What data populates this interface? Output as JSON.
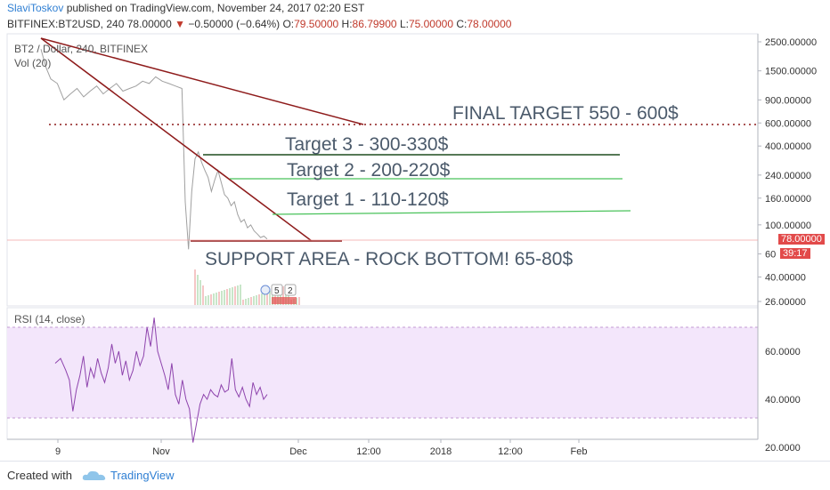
{
  "header": {
    "author": "SlaviToskov",
    "published": "published on TradingView.com, November 24, 2017 02:20 EST",
    "symbol": "BITFINEX:BT2USD, 240",
    "last": "78.00000",
    "change": "−0.50000 (−0.64%)",
    "o_label": "O:",
    "o_value": "79.50000",
    "h_label": "H:",
    "h_value": "86.79900",
    "l_label": "L:",
    "l_value": "75.00000",
    "c_label": "C:",
    "c_value": "78.00000"
  },
  "overlays": {
    "pair": "BT2 / Dollar, 240, BITFINEX",
    "vol": "Vol (20)",
    "rsi": "RSI (14, close)"
  },
  "annotations": {
    "final_target": "FINAL TARGET  550 - 600$",
    "target3": "Target 3 - 300-330$",
    "target2": "Target 2 - 200-220$",
    "target1": "Target 1 - 110-120$",
    "support": "SUPPORT AREA - ROCK BOTTOM! 65-80$"
  },
  "price_tags": {
    "last_price": "78.00000",
    "countdown": "39:17",
    "marker_a": "5",
    "marker_b": "2"
  },
  "footer": {
    "created_with": "Created with",
    "brand": "TradingView"
  },
  "colors": {
    "trendline": "#8e1b1b",
    "target_green": "#49c25a",
    "target_dark": "#1e4d1e",
    "rsi_line": "#8e44ad",
    "rsi_band": "#f3e6fb",
    "price_tag": "#e24a4a"
  },
  "chart_data": [
    {
      "type": "line",
      "title": "BT2 / Dollar, 240, BITFINEX",
      "y_scale": "log",
      "y_ticks": [
        "2500.00000",
        "1500.00000",
        "900.00000",
        "600.00000",
        "400.00000",
        "240.00000",
        "160.00000",
        "100.00000",
        "60",
        "40.00000",
        "26.00000"
      ],
      "y_tick_values": [
        2500,
        1500,
        900,
        600,
        400,
        240,
        160,
        100,
        60,
        40,
        26
      ],
      "x_ticks": [
        "9",
        "Nov",
        "Dec",
        "12:00",
        "2018",
        "12:00",
        "Feb"
      ],
      "series": [
        {
          "values": [
            [
              0,
              2200
            ],
            [
              3,
              1600
            ],
            [
              6,
              1300
            ],
            [
              10,
              1200
            ],
            [
              14,
              900
            ],
            [
              18,
              1000
            ],
            [
              22,
              1100
            ],
            [
              26,
              950
            ],
            [
              30,
              1050
            ],
            [
              34,
              1150
            ],
            [
              38,
              1000
            ],
            [
              42,
              1100
            ],
            [
              46,
              1200
            ],
            [
              50,
              1050
            ],
            [
              54,
              1100
            ],
            [
              58,
              1150
            ],
            [
              62,
              1250
            ],
            [
              66,
              1200
            ],
            [
              70,
              1350
            ],
            [
              74,
              1250
            ],
            [
              78,
              1200
            ],
            [
              82,
              1150
            ],
            [
              86,
              1100
            ],
            [
              88,
              150
            ],
            [
              90,
              65
            ],
            [
              92,
              180
            ],
            [
              94,
              320
            ],
            [
              96,
              360
            ],
            [
              98,
              300
            ],
            [
              100,
              260
            ],
            [
              102,
              230
            ],
            [
              104,
              180
            ],
            [
              106,
              220
            ],
            [
              108,
              260
            ],
            [
              110,
              210
            ],
            [
              112,
              170
            ],
            [
              114,
              160
            ],
            [
              116,
              140
            ],
            [
              118,
              150
            ],
            [
              120,
              120
            ],
            [
              122,
              105
            ],
            [
              124,
              110
            ],
            [
              126,
              95
            ],
            [
              128,
              100
            ],
            [
              130,
              90
            ],
            [
              132,
              85
            ],
            [
              134,
              80
            ],
            [
              136,
              82
            ],
            [
              138,
              78
            ]
          ]
        }
      ],
      "horizontal_levels": [
        {
          "label": "FINAL TARGET  550 - 600$",
          "value": 600
        },
        {
          "label": "Target 3 - 300-330$",
          "value": 360
        },
        {
          "label": "Target 2 - 200-220$",
          "value": 230
        },
        {
          "label": "Target 1 - 110-120$",
          "value": 128
        },
        {
          "label": "SUPPORT AREA - ROCK BOTTOM! 65-80$",
          "value": 82
        }
      ]
    },
    {
      "type": "line",
      "title": "RSI (14, close)",
      "y_ticks": [
        "60.0000",
        "40.0000",
        "20.0000"
      ],
      "y_tick_values": [
        60,
        40,
        20
      ],
      "band": [
        30,
        70
      ],
      "ylim": [
        20,
        75
      ],
      "series": [
        {
          "values": [
            [
              0,
              55
            ],
            [
              3,
              57
            ],
            [
              6,
              52
            ],
            [
              8,
              48
            ],
            [
              10,
              35
            ],
            [
              12,
              44
            ],
            [
              14,
              50
            ],
            [
              16,
              58
            ],
            [
              18,
              45
            ],
            [
              20,
              53
            ],
            [
              22,
              49
            ],
            [
              24,
              57
            ],
            [
              26,
              51
            ],
            [
              28,
              47
            ],
            [
              30,
              53
            ],
            [
              32,
              63
            ],
            [
              34,
              55
            ],
            [
              36,
              60
            ],
            [
              38,
              50
            ],
            [
              40,
              56
            ],
            [
              42,
              48
            ],
            [
              44,
              52
            ],
            [
              46,
              60
            ],
            [
              48,
              54
            ],
            [
              50,
              58
            ],
            [
              52,
              70
            ],
            [
              54,
              62
            ],
            [
              56,
              74
            ],
            [
              58,
              60
            ],
            [
              60,
              55
            ],
            [
              62,
              50
            ],
            [
              64,
              44
            ],
            [
              66,
              55
            ],
            [
              68,
              42
            ],
            [
              70,
              38
            ],
            [
              72,
              48
            ],
            [
              74,
              40
            ],
            [
              76,
              36
            ],
            [
              78,
              22
            ],
            [
              80,
              30
            ],
            [
              82,
              38
            ],
            [
              84,
              42
            ],
            [
              86,
              40
            ],
            [
              88,
              44
            ],
            [
              90,
              42
            ],
            [
              92,
              41
            ],
            [
              94,
              46
            ],
            [
              96,
              43
            ],
            [
              98,
              44
            ],
            [
              100,
              57
            ],
            [
              102,
              44
            ],
            [
              104,
              41
            ],
            [
              106,
              45
            ],
            [
              108,
              40
            ],
            [
              110,
              37
            ],
            [
              112,
              47
            ],
            [
              114,
              42
            ],
            [
              116,
              45
            ],
            [
              118,
              40
            ],
            [
              120,
              42
            ]
          ]
        }
      ]
    }
  ]
}
